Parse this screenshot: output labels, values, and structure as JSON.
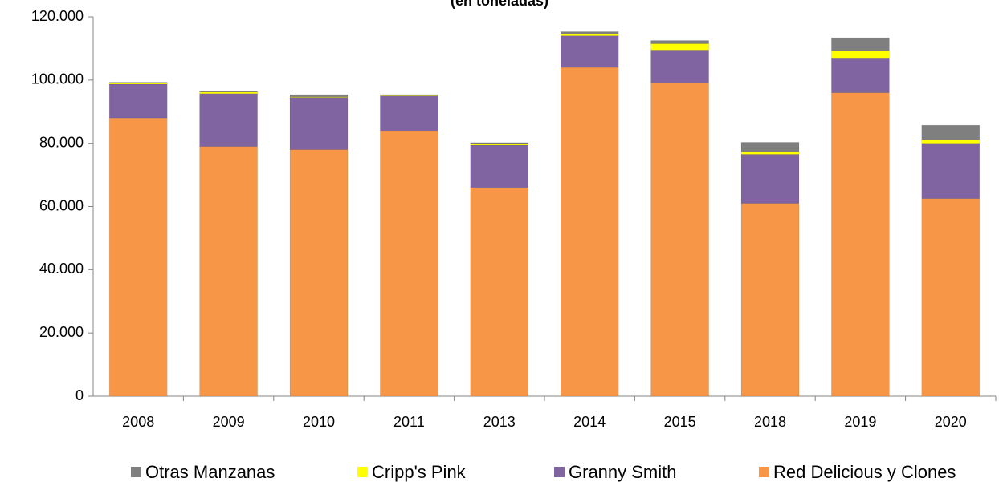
{
  "chart_data": {
    "type": "stacked_bar",
    "title": "(en toneladas)",
    "categories": [
      "2008",
      "2009",
      "2010",
      "2011",
      "2013",
      "2014",
      "2015",
      "2018",
      "2019",
      "2020"
    ],
    "series": [
      {
        "name": "Otras Manzanas",
        "color": "#7f7f7f",
        "values": [
          300,
          200,
          700,
          200,
          300,
          700,
          1000,
          3000,
          4200,
          4500
        ]
      },
      {
        "name": "Cripp's Pink",
        "color": "#ffff00",
        "values": [
          300,
          500,
          200,
          200,
          500,
          600,
          2000,
          800,
          2200,
          1200
        ]
      },
      {
        "name": "Granny Smith",
        "color": "#8064a2",
        "values": [
          10700,
          16700,
          16500,
          11000,
          13400,
          10000,
          10500,
          15500,
          11000,
          17500
        ]
      },
      {
        "name": "Red Delicious y Clones",
        "color": "#f79646",
        "values": [
          88000,
          79000,
          78000,
          84000,
          66000,
          104000,
          99000,
          61000,
          96000,
          62500
        ]
      }
    ],
    "ylim": [
      0,
      120000
    ],
    "yticks": [
      0,
      {
        "value": 20000,
        "label": "20.000"
      },
      {
        "value": 40000,
        "label": "40.000"
      },
      {
        "value": 60000,
        "label": "60.000"
      },
      {
        "value": 80000,
        "label": "80.000"
      },
      {
        "value": 100000,
        "label": "100.000"
      },
      {
        "value": 120000,
        "label": "120.000"
      }
    ],
    "grid": false
  }
}
